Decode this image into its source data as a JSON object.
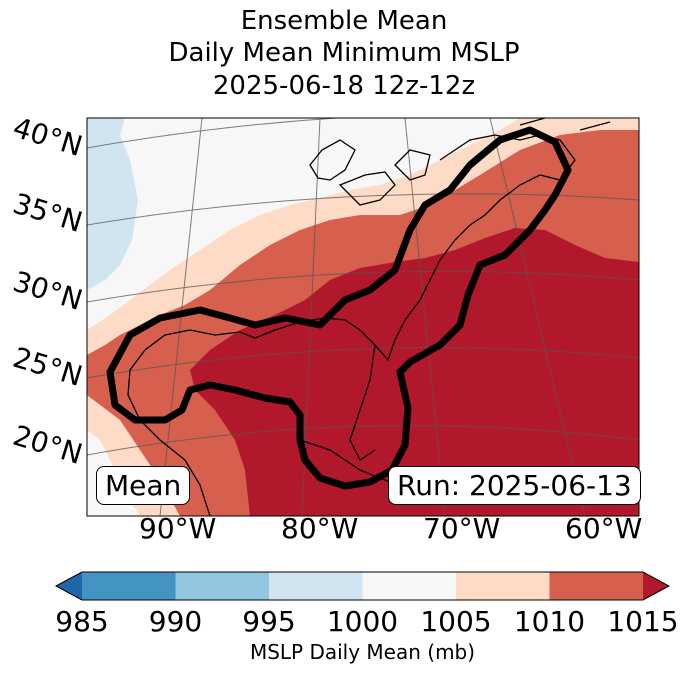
{
  "title": {
    "line1": "Ensemble Mean",
    "line2": "Daily Mean Minimum MSLP",
    "line3": "2025-06-18 12z-12z"
  },
  "map": {
    "lat_labels": [
      "40°N",
      "35°N",
      "30°N",
      "25°N",
      "20°N"
    ],
    "lon_labels": [
      "90°W",
      "80°W",
      "70°W",
      "60°W"
    ],
    "mean_label": "Mean",
    "run_label": "Run: 2025-06-13",
    "band_colors": {
      "b985_990": "#4393c3",
      "b990_995": "#92c5de",
      "b995_1000": "#d1e5f0",
      "b1000_1005": "#f7f7f7",
      "b1005_1010": "#fddbc7",
      "b1010_1015": "#d6604d",
      "b1015plus": "#b2182b",
      "below985": "#2166ac"
    },
    "contour_color": "#000000"
  },
  "colorbar": {
    "ticks": [
      "985",
      "990",
      "995",
      "1000",
      "1005",
      "1010",
      "1015"
    ],
    "label": "MSLP Daily Mean (mb)"
  }
}
